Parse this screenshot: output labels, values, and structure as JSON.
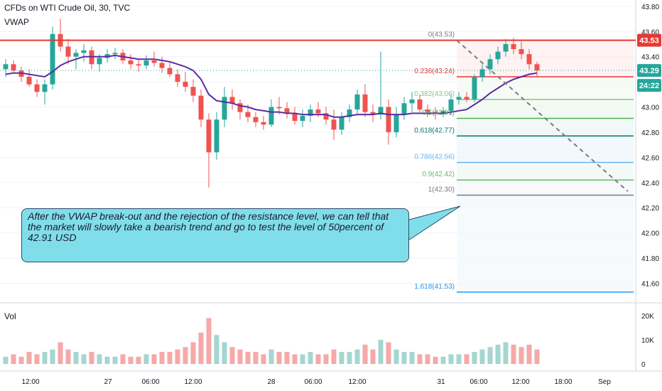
{
  "header": {
    "title": "CFDs on WTI Crude Oil, 30, TVC",
    "indicator": "VWAP",
    "volume_label": "Vol"
  },
  "annotation": {
    "text": "After the VWAP break-out and the rejection of the resistance level, we can tell that the market will slowly take a bearish trend and go to test the level of 50percent of 42.91 USD"
  },
  "colors": {
    "up": "#26a69a",
    "down": "#ef5350",
    "vwap": "#5b2ca0",
    "resistance": "#e53935",
    "callout": "#80deea"
  },
  "price_axis": {
    "ticks": [
      "43.80",
      "43.60",
      "43.40",
      "43.20",
      "43.00",
      "42.80",
      "42.60",
      "42.40",
      "42.20",
      "42.00",
      "41.80",
      "41.60"
    ],
    "tags": [
      {
        "label": "43.53",
        "color": "#e53935"
      },
      {
        "label": "43.29",
        "color": "#26a69a"
      },
      {
        "label": "24:22",
        "color": "#26a69a"
      }
    ]
  },
  "volume_axis": {
    "ticks": [
      "20K",
      "10K",
      "0"
    ]
  },
  "time_axis": {
    "ticks": [
      "12:00",
      "27",
      "06:00",
      "12:00",
      "28",
      "06:00",
      "12:00",
      "31",
      "06:00",
      "12:00",
      "18:00",
      "Sep"
    ]
  },
  "fib_levels": [
    {
      "label": "0(43.53)",
      "price": 43.53,
      "color": "#787b86"
    },
    {
      "label": "0.236(43.24)",
      "price": 43.24,
      "color": "#e53935"
    },
    {
      "label": "0.382(43.06)",
      "price": 43.06,
      "color": "#81c784"
    },
    {
      "label": "0.5(42.91)",
      "price": 42.91,
      "color": "#4caf50"
    },
    {
      "label": "0.618(42.77)",
      "price": 42.77,
      "color": "#00796b"
    },
    {
      "label": "0.786(42.56)",
      "price": 42.56,
      "color": "#64b5f6"
    },
    {
      "label": "0.9(42.42)",
      "price": 42.42,
      "color": "#66bb6a"
    },
    {
      "label": "1(42.30)",
      "price": 42.3,
      "color": "#787b86"
    },
    {
      "label": "1.618(41.53)",
      "price": 41.53,
      "color": "#2196f3"
    }
  ],
  "chart_data": {
    "type": "candlestick",
    "title": "CFDs on WTI Crude Oil, 30, TVC",
    "ylim": [
      41.45,
      43.85
    ],
    "resistance": 43.53,
    "last_price": 43.29,
    "grid": true,
    "candles": [
      {
        "o": 43.3,
        "h": 43.38,
        "l": 43.24,
        "c": 43.34
      },
      {
        "o": 43.34,
        "h": 43.37,
        "l": 43.27,
        "c": 43.29
      },
      {
        "o": 43.29,
        "h": 43.32,
        "l": 43.2,
        "c": 43.24
      },
      {
        "o": 43.24,
        "h": 43.3,
        "l": 43.16,
        "c": 43.18
      },
      {
        "o": 43.18,
        "h": 43.22,
        "l": 43.08,
        "c": 43.12
      },
      {
        "o": 43.12,
        "h": 43.22,
        "l": 43.02,
        "c": 43.18
      },
      {
        "o": 43.18,
        "h": 43.64,
        "l": 43.14,
        "c": 43.58
      },
      {
        "o": 43.58,
        "h": 43.7,
        "l": 43.44,
        "c": 43.48
      },
      {
        "o": 43.48,
        "h": 43.54,
        "l": 43.34,
        "c": 43.4
      },
      {
        "o": 43.4,
        "h": 43.46,
        "l": 43.3,
        "c": 43.43
      },
      {
        "o": 43.43,
        "h": 43.5,
        "l": 43.36,
        "c": 43.45
      },
      {
        "o": 43.45,
        "h": 43.48,
        "l": 43.3,
        "c": 43.34
      },
      {
        "o": 43.34,
        "h": 43.42,
        "l": 43.28,
        "c": 43.39
      },
      {
        "o": 43.39,
        "h": 43.46,
        "l": 43.35,
        "c": 43.42
      },
      {
        "o": 43.42,
        "h": 43.47,
        "l": 43.38,
        "c": 43.43
      },
      {
        "o": 43.43,
        "h": 43.46,
        "l": 43.34,
        "c": 43.37
      },
      {
        "o": 43.37,
        "h": 43.42,
        "l": 43.3,
        "c": 43.34
      },
      {
        "o": 43.34,
        "h": 43.38,
        "l": 43.28,
        "c": 43.33
      },
      {
        "o": 43.33,
        "h": 43.41,
        "l": 43.3,
        "c": 43.37
      },
      {
        "o": 43.37,
        "h": 43.44,
        "l": 43.32,
        "c": 43.35
      },
      {
        "o": 43.35,
        "h": 43.4,
        "l": 43.27,
        "c": 43.31
      },
      {
        "o": 43.31,
        "h": 43.36,
        "l": 43.24,
        "c": 43.26
      },
      {
        "o": 43.26,
        "h": 43.3,
        "l": 43.16,
        "c": 43.2
      },
      {
        "o": 43.2,
        "h": 43.28,
        "l": 43.12,
        "c": 43.16
      },
      {
        "o": 43.16,
        "h": 43.22,
        "l": 43.04,
        "c": 43.09
      },
      {
        "o": 43.09,
        "h": 43.14,
        "l": 42.84,
        "c": 42.9
      },
      {
        "o": 42.9,
        "h": 42.95,
        "l": 42.36,
        "c": 42.64
      },
      {
        "o": 42.64,
        "h": 42.96,
        "l": 42.58,
        "c": 42.9
      },
      {
        "o": 42.9,
        "h": 43.16,
        "l": 42.84,
        "c": 43.08
      },
      {
        "o": 43.08,
        "h": 43.14,
        "l": 42.98,
        "c": 43.03
      },
      {
        "o": 43.03,
        "h": 43.06,
        "l": 42.9,
        "c": 42.96
      },
      {
        "o": 42.96,
        "h": 43.02,
        "l": 42.88,
        "c": 42.92
      },
      {
        "o": 42.92,
        "h": 42.96,
        "l": 42.84,
        "c": 42.88
      },
      {
        "o": 42.88,
        "h": 42.93,
        "l": 42.82,
        "c": 42.86
      },
      {
        "o": 42.86,
        "h": 43.06,
        "l": 42.84,
        "c": 43.0
      },
      {
        "o": 43.0,
        "h": 43.08,
        "l": 42.94,
        "c": 42.99
      },
      {
        "o": 42.99,
        "h": 43.04,
        "l": 42.91,
        "c": 42.95
      },
      {
        "o": 42.95,
        "h": 43.0,
        "l": 42.86,
        "c": 42.89
      },
      {
        "o": 42.89,
        "h": 42.98,
        "l": 42.84,
        "c": 42.93
      },
      {
        "o": 42.93,
        "h": 43.02,
        "l": 42.88,
        "c": 42.98
      },
      {
        "o": 42.98,
        "h": 43.04,
        "l": 42.92,
        "c": 42.95
      },
      {
        "o": 42.95,
        "h": 43.0,
        "l": 42.86,
        "c": 42.9
      },
      {
        "o": 42.9,
        "h": 42.98,
        "l": 42.74,
        "c": 42.82
      },
      {
        "o": 42.82,
        "h": 42.96,
        "l": 42.78,
        "c": 42.92
      },
      {
        "o": 42.92,
        "h": 43.02,
        "l": 42.88,
        "c": 42.98
      },
      {
        "o": 42.98,
        "h": 43.14,
        "l": 42.94,
        "c": 43.1
      },
      {
        "o": 43.1,
        "h": 43.18,
        "l": 42.92,
        "c": 42.96
      },
      {
        "o": 42.96,
        "h": 43.02,
        "l": 42.88,
        "c": 42.94
      },
      {
        "o": 42.94,
        "h": 43.44,
        "l": 42.9,
        "c": 43.0
      },
      {
        "o": 43.0,
        "h": 43.06,
        "l": 42.7,
        "c": 42.8
      },
      {
        "o": 42.8,
        "h": 43.0,
        "l": 42.76,
        "c": 42.94
      },
      {
        "o": 42.94,
        "h": 43.08,
        "l": 42.9,
        "c": 43.03
      },
      {
        "o": 43.03,
        "h": 43.12,
        "l": 42.96,
        "c": 43.06
      },
      {
        "o": 43.06,
        "h": 43.1,
        "l": 42.96,
        "c": 42.98
      },
      {
        "o": 42.98,
        "h": 43.02,
        "l": 42.92,
        "c": 42.96
      },
      {
        "o": 42.96,
        "h": 43.0,
        "l": 42.9,
        "c": 42.95
      },
      {
        "o": 42.95,
        "h": 43.0,
        "l": 42.92,
        "c": 42.97
      },
      {
        "o": 42.97,
        "h": 43.1,
        "l": 42.94,
        "c": 43.06
      },
      {
        "o": 43.06,
        "h": 43.12,
        "l": 43.02,
        "c": 43.08
      },
      {
        "o": 43.08,
        "h": 43.12,
        "l": 43.04,
        "c": 43.06
      },
      {
        "o": 43.06,
        "h": 43.26,
        "l": 43.04,
        "c": 43.24
      },
      {
        "o": 43.24,
        "h": 43.34,
        "l": 43.2,
        "c": 43.3
      },
      {
        "o": 43.3,
        "h": 43.42,
        "l": 43.26,
        "c": 43.38
      },
      {
        "o": 43.38,
        "h": 43.48,
        "l": 43.34,
        "c": 43.44
      },
      {
        "o": 43.44,
        "h": 43.54,
        "l": 43.4,
        "c": 43.5
      },
      {
        "o": 43.5,
        "h": 43.55,
        "l": 43.42,
        "c": 43.46
      },
      {
        "o": 43.46,
        "h": 43.52,
        "l": 43.38,
        "c": 43.42
      },
      {
        "o": 43.42,
        "h": 43.46,
        "l": 43.3,
        "c": 43.34
      },
      {
        "o": 43.34,
        "h": 43.36,
        "l": 43.24,
        "c": 43.29
      }
    ],
    "vwap": [
      43.26,
      43.27,
      43.27,
      43.26,
      43.25,
      43.24,
      43.28,
      43.33,
      43.36,
      43.38,
      43.4,
      43.4,
      43.4,
      43.4,
      43.41,
      43.4,
      43.39,
      43.38,
      43.38,
      43.38,
      43.37,
      43.36,
      43.34,
      43.32,
      43.29,
      43.22,
      43.1,
      43.05,
      43.04,
      43.03,
      43.01,
      43.0,
      42.98,
      42.97,
      42.96,
      42.96,
      42.95,
      42.95,
      42.94,
      42.94,
      42.94,
      42.94,
      42.92,
      42.92,
      42.93,
      42.94,
      42.94,
      42.94,
      42.95,
      42.94,
      42.94,
      42.94,
      42.95,
      42.95,
      42.95,
      42.95,
      42.95,
      42.96,
      42.97,
      42.98,
      43.02,
      43.06,
      43.11,
      43.15,
      43.19,
      43.22,
      43.24,
      43.26,
      43.27
    ],
    "volume": [
      3,
      4,
      3,
      5,
      4,
      5,
      6,
      9,
      6,
      5,
      4,
      5,
      4,
      3,
      3,
      4,
      3,
      3,
      4,
      4,
      5,
      5,
      6,
      7,
      9,
      13,
      19,
      12,
      9,
      7,
      6,
      5,
      5,
      4,
      6,
      5,
      5,
      4,
      4,
      5,
      4,
      4,
      6,
      5,
      5,
      6,
      8,
      6,
      10,
      9,
      6,
      5,
      5,
      4,
      4,
      3,
      3,
      4,
      4,
      4,
      5,
      6,
      7,
      8,
      9,
      8,
      7,
      8,
      6
    ]
  }
}
